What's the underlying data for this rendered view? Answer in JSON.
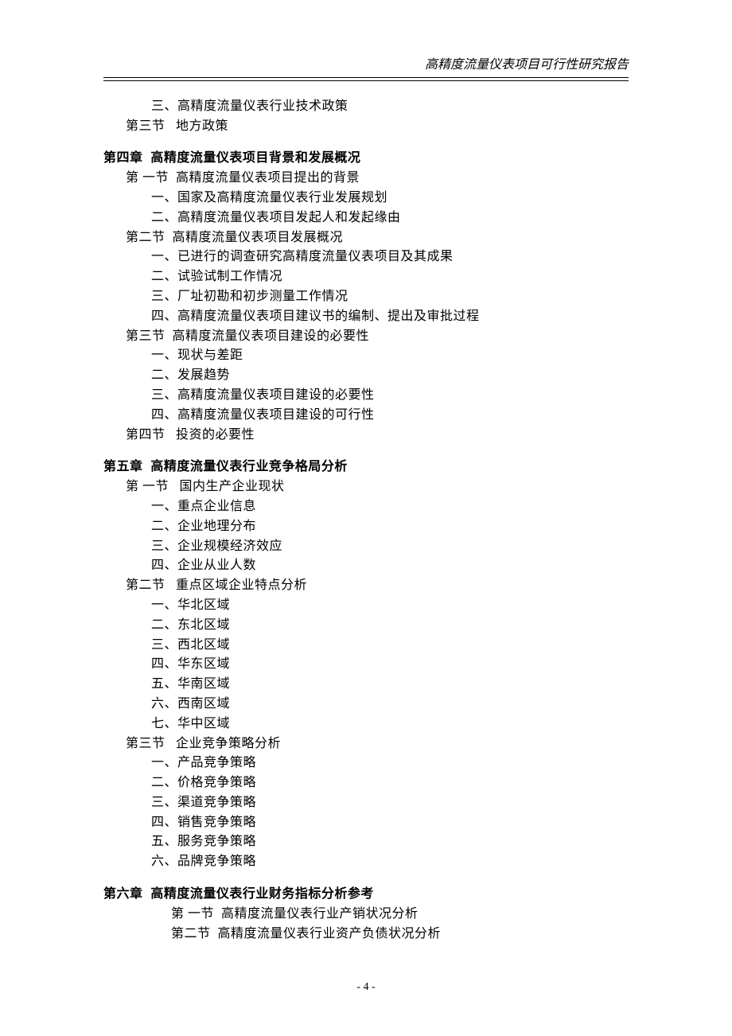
{
  "header_title": "高精度流量仪表项目可行性研究报告",
  "page_number": "- 4 -",
  "typography": {
    "body_fontsize_pt": 12,
    "bold_font": "SimHei",
    "body_font": "SimSun",
    "header_font": "KaiTi",
    "header_italic": true,
    "text_color": "#000000",
    "bg_color": "#ffffff"
  },
  "prelude": {
    "items": [
      {
        "name": "item-3-3",
        "text": "三、高精度流量仪表行业技术政策",
        "indent": "a"
      },
      {
        "name": "section-3-3",
        "text": "第三节   地方政策",
        "indent": "b"
      }
    ]
  },
  "chapters": [
    {
      "name": "chapter-4",
      "title": "第四章  高精度流量仪表项目背景和发展概况",
      "lines": [
        {
          "name": "c4-s1",
          "text": "第 一节  高精度流量仪表项目提出的背景",
          "indent": "b"
        },
        {
          "name": "c4-s1-1",
          "text": "一、国家及高精度流量仪表行业发展规划",
          "indent": "a"
        },
        {
          "name": "c4-s1-2",
          "text": "二、高精度流量仪表项目发起人和发起缘由",
          "indent": "a"
        },
        {
          "name": "c4-s2",
          "text": "第二节  高精度流量仪表项目发展概况",
          "indent": "b"
        },
        {
          "name": "c4-s2-1",
          "text": "一、已进行的调查研究高精度流量仪表项目及其成果",
          "indent": "a"
        },
        {
          "name": "c4-s2-2",
          "text": "二、试验试制工作情况",
          "indent": "a"
        },
        {
          "name": "c4-s2-3",
          "text": "三、厂址初勘和初步测量工作情况",
          "indent": "a"
        },
        {
          "name": "c4-s2-4",
          "text": "四、高精度流量仪表项目建议书的编制、提出及审批过程",
          "indent": "a"
        },
        {
          "name": "c4-s3",
          "text": "第三节  高精度流量仪表项目建设的必要性",
          "indent": "b"
        },
        {
          "name": "c4-s3-1",
          "text": "一、现状与差距",
          "indent": "a"
        },
        {
          "name": "c4-s3-2",
          "text": "二、发展趋势",
          "indent": "a"
        },
        {
          "name": "c4-s3-3",
          "text": "三、高精度流量仪表项目建设的必要性",
          "indent": "a"
        },
        {
          "name": "c4-s3-4",
          "text": "四、高精度流量仪表项目建设的可行性",
          "indent": "a"
        },
        {
          "name": "c4-s4",
          "text": "第四节   投资的必要性",
          "indent": "b"
        }
      ]
    },
    {
      "name": "chapter-5",
      "title": "第五章  高精度流量仪表行业竞争格局分析",
      "lines": [
        {
          "name": "c5-s1",
          "text": "第 一节   国内生产企业现状",
          "indent": "b"
        },
        {
          "name": "c5-s1-1",
          "text": "一、重点企业信息",
          "indent": "a"
        },
        {
          "name": "c5-s1-2",
          "text": "二、企业地理分布",
          "indent": "a"
        },
        {
          "name": "c5-s1-3",
          "text": "三、企业规模经济效应",
          "indent": "a"
        },
        {
          "name": "c5-s1-4",
          "text": "四、企业从业人数",
          "indent": "a"
        },
        {
          "name": "c5-s2",
          "text": "第二节   重点区域企业特点分析",
          "indent": "b"
        },
        {
          "name": "c5-s2-1",
          "text": "一、华北区域",
          "indent": "a"
        },
        {
          "name": "c5-s2-2",
          "text": "二、东北区域",
          "indent": "a"
        },
        {
          "name": "c5-s2-3",
          "text": "三、西北区域",
          "indent": "a"
        },
        {
          "name": "c5-s2-4",
          "text": "四、华东区域",
          "indent": "a"
        },
        {
          "name": "c5-s2-5",
          "text": "五、华南区域",
          "indent": "a"
        },
        {
          "name": "c5-s2-6",
          "text": "六、西南区域",
          "indent": "a"
        },
        {
          "name": "c5-s2-7",
          "text": "七、华中区域",
          "indent": "a"
        },
        {
          "name": "c5-s3",
          "text": "第三节   企业竞争策略分析",
          "indent": "b"
        },
        {
          "name": "c5-s3-1",
          "text": "一、产品竞争策略",
          "indent": "a"
        },
        {
          "name": "c5-s3-2",
          "text": "二、价格竞争策略",
          "indent": "a"
        },
        {
          "name": "c5-s3-3",
          "text": "三、渠道竞争策略",
          "indent": "a"
        },
        {
          "name": "c5-s3-4",
          "text": "四、销售竞争策略",
          "indent": "a"
        },
        {
          "name": "c5-s3-5",
          "text": "五、服务竞争策略",
          "indent": "a"
        },
        {
          "name": "c5-s3-6",
          "text": "六、品牌竞争策略",
          "indent": "a"
        }
      ]
    },
    {
      "name": "chapter-6",
      "title": "第六章  高精度流量仪表行业财务指标分析参考",
      "lines": [
        {
          "name": "c6-s1",
          "text": "第 一节  高精度流量仪表行业产销状况分析",
          "indent": "c"
        },
        {
          "name": "c6-s2",
          "text": "第二节  高精度流量仪表行业资产负债状况分析",
          "indent": "c"
        }
      ]
    }
  ]
}
